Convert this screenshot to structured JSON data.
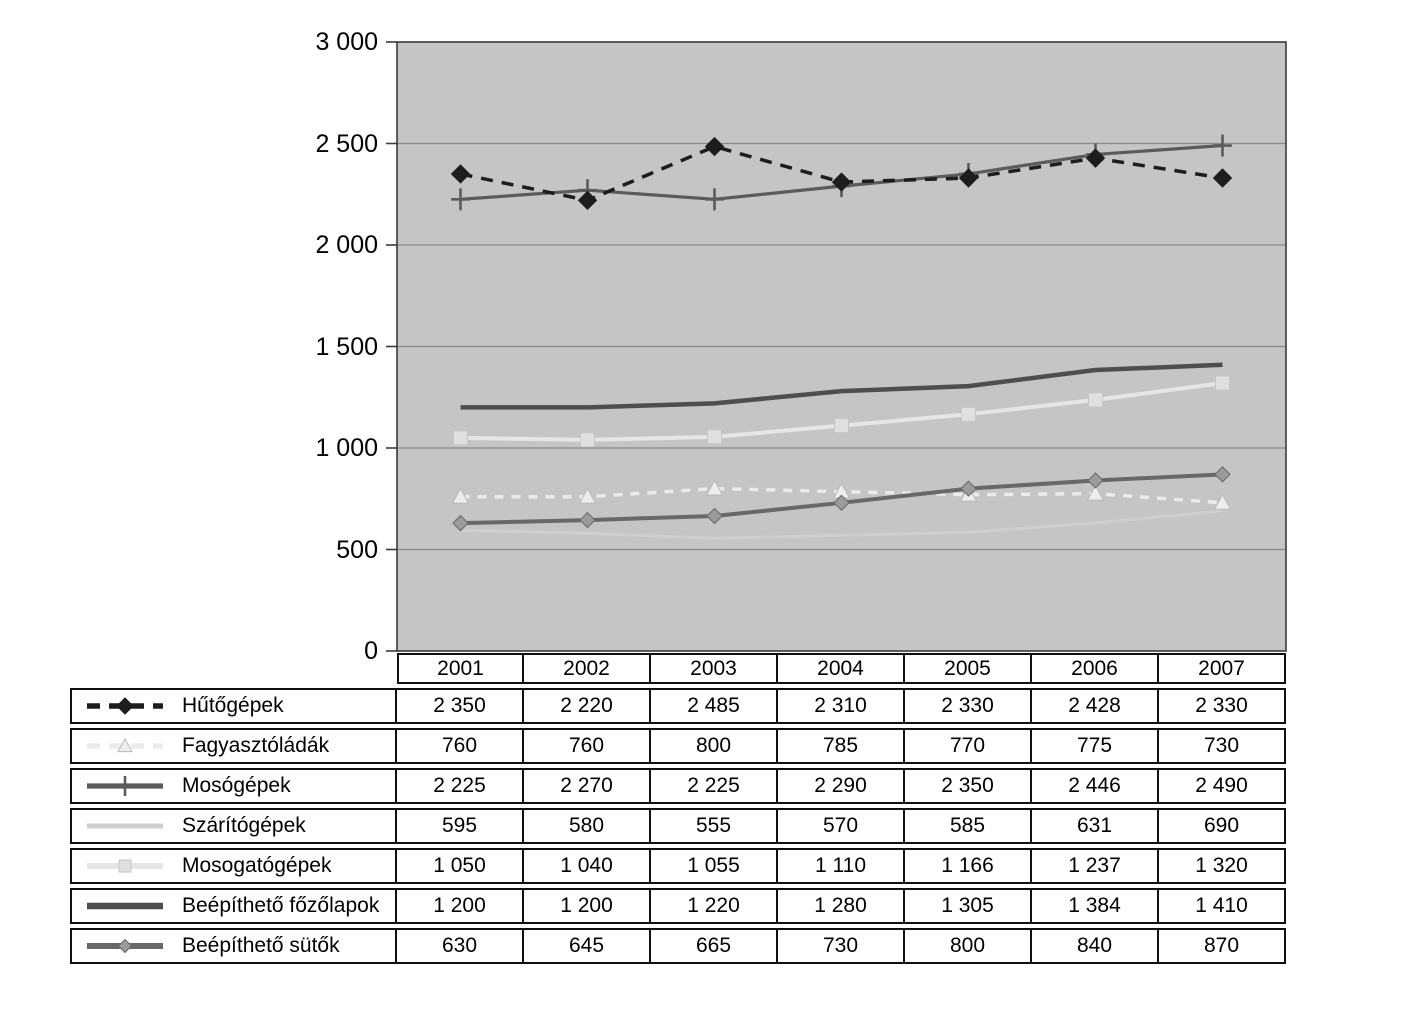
{
  "page": {
    "background": "#ffffff",
    "description": "line-chart-with-data-table"
  },
  "chart_data": {
    "type": "line",
    "title": "",
    "xlabel": "",
    "ylabel": "",
    "grid": "on",
    "legend_position": "table-left",
    "x_categories": [
      "2001",
      "2002",
      "2003",
      "2004",
      "2005",
      "2006",
      "2007"
    ],
    "y_axis": {
      "min": 0,
      "max": 3000,
      "step": 500,
      "tick_labels": [
        "0",
        "500",
        "1 000",
        "1 500",
        "2 000",
        "2 500",
        "3 000"
      ]
    },
    "colors": {
      "plot_background": "#c5c5c5",
      "gridline": "#898989",
      "axis": "#3a3a3a",
      "table_border": "#101010",
      "text": "#000000"
    },
    "series": [
      {
        "name": "Hűtőgépek",
        "values": [
          2350,
          2220,
          2485,
          2310,
          2330,
          2428,
          2330
        ],
        "display": [
          "2 350",
          "2 220",
          "2 485",
          "2 310",
          "2 330",
          "2 428",
          "2 330"
        ],
        "color": "#1d1d1d",
        "width": 3.5,
        "dash": "12 9",
        "marker": "diamond",
        "marker_fill": "#1d1d1d",
        "marker_stroke": "#1d1d1d",
        "marker_size": 9
      },
      {
        "name": "Fagyasztóládák",
        "values": [
          760,
          760,
          800,
          785,
          770,
          775,
          730
        ],
        "display": [
          "760",
          "760",
          "800",
          "785",
          "770",
          "775",
          "730"
        ],
        "color": "#ebebeb",
        "width": 3.5,
        "dash": "9 8",
        "marker": "triangle",
        "marker_fill": "#ededed",
        "marker_stroke": "#b9b9b9",
        "marker_size": 8
      },
      {
        "name": "Mosógépek",
        "values": [
          2225,
          2270,
          2225,
          2290,
          2350,
          2446,
          2490
        ],
        "display": [
          "2 225",
          "2 270",
          "2 225",
          "2 290",
          "2 350",
          "2 446",
          "2 490"
        ],
        "color": "#5b5b5b",
        "width": 3.2,
        "dash": null,
        "marker": "plus",
        "marker_fill": "#5b5b5b",
        "marker_stroke": "#5b5b5b",
        "marker_size": 11
      },
      {
        "name": "Szárítógépek",
        "values": [
          595,
          580,
          555,
          570,
          585,
          631,
          690
        ],
        "display": [
          "595",
          "580",
          "555",
          "570",
          "585",
          "631",
          "690"
        ],
        "color": "#cfcfcf",
        "width": 3,
        "dash": null,
        "marker": "none",
        "marker_fill": "#cfcfcf",
        "marker_stroke": "#cfcfcf",
        "marker_size": 0
      },
      {
        "name": "Mosogatógépek",
        "values": [
          1050,
          1040,
          1055,
          1110,
          1166,
          1237,
          1320
        ],
        "display": [
          "1 050",
          "1 040",
          "1 055",
          "1 110",
          "1 166",
          "1 237",
          "1 320"
        ],
        "color": "#e6e6e6",
        "width": 4,
        "dash": null,
        "marker": "square",
        "marker_fill": "#e0e0e0",
        "marker_stroke": "#c6c6c6",
        "marker_size": 7
      },
      {
        "name": "Beépíthető főzőlapok",
        "values": [
          1200,
          1200,
          1220,
          1280,
          1305,
          1384,
          1410
        ],
        "display": [
          "1 200",
          "1 200",
          "1 220",
          "1 280",
          "1 305",
          "1 384",
          "1 410"
        ],
        "color": "#4e4e4e",
        "width": 4.5,
        "dash": null,
        "marker": "none",
        "marker_fill": "#4e4e4e",
        "marker_stroke": "#4e4e4e",
        "marker_size": 0
      },
      {
        "name": "Beépíthető sütők",
        "values": [
          630,
          645,
          665,
          730,
          800,
          840,
          870
        ],
        "display": [
          "630",
          "645",
          "665",
          "730",
          "800",
          "840",
          "870"
        ],
        "color": "#686868",
        "width": 4,
        "dash": null,
        "marker": "diamond",
        "marker_fill": "#9b9b9b",
        "marker_stroke": "#686868",
        "marker_size": 7.5
      }
    ]
  }
}
